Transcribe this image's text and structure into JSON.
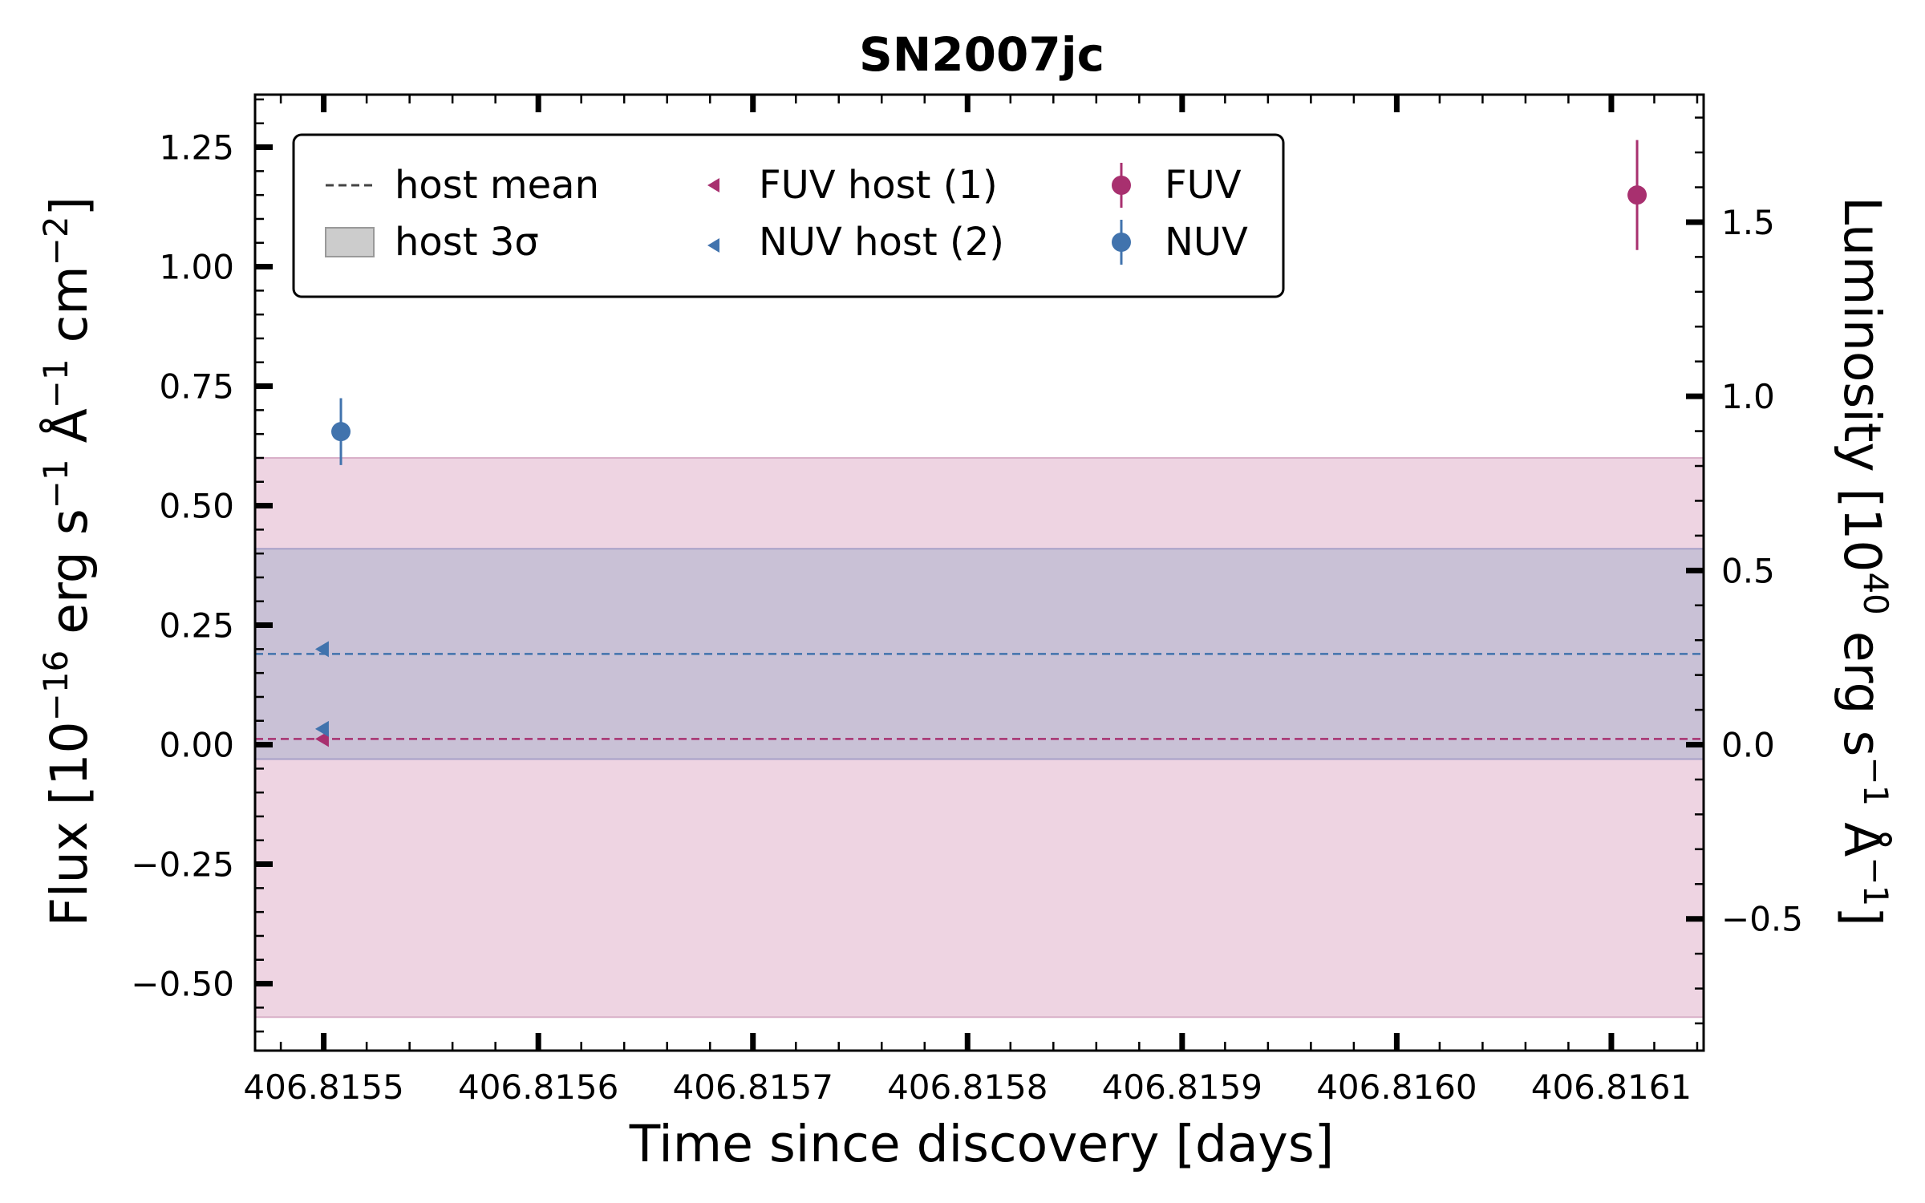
{
  "colors": {
    "fuv": "#a8306f",
    "nuv": "#4173ad",
    "fuv_band": "#eed4e2",
    "nuv_band": "#c9c1d6",
    "band_edge_fuv": "#d9b0c8",
    "band_edge_nuv": "#a7a0c8",
    "host_mean_legend": "#444444",
    "host_band_legend": "#cccccc"
  },
  "chart_data": {
    "type": "scatter",
    "title": "SN2007jc",
    "xlabel": "Time since discovery [days]",
    "ylabel": "Flux [10",
    "ylabel_exp1": "−16",
    "ylabel_mid": " erg s",
    "ylabel_exp2": "−1",
    "ylabel_mid2": " Å",
    "ylabel_exp3": "−1",
    "ylabel_mid3": " cm",
    "ylabel_exp4": "−2",
    "ylabel_end": "]",
    "y2label": "Luminosity [10",
    "y2label_exp1": "40",
    "y2label_mid": " erg s",
    "y2label_exp2": "−1",
    "y2label_mid2": " Å",
    "y2label_exp3": "−1",
    "y2label_end": "]",
    "xlim": [
      406.815468,
      406.816143
    ],
    "ylim": [
      -0.64,
      1.36
    ],
    "y2lim": [
      -0.8782,
      1.8659
    ],
    "xticks": [
      {
        "value": 406.8155,
        "label": "406.8155"
      },
      {
        "value": 406.8156,
        "label": "406.8156"
      },
      {
        "value": 406.8157,
        "label": "406.8157"
      },
      {
        "value": 406.8158,
        "label": "406.8158"
      },
      {
        "value": 406.8159,
        "label": "406.8159"
      },
      {
        "value": 406.816,
        "label": "406.8160"
      },
      {
        "value": 406.8161,
        "label": "406.8161"
      }
    ],
    "yticks": [
      {
        "value": -0.5,
        "label": "−0.50"
      },
      {
        "value": -0.25,
        "label": "−0.25"
      },
      {
        "value": 0.0,
        "label": "0.00"
      },
      {
        "value": 0.25,
        "label": "0.25"
      },
      {
        "value": 0.5,
        "label": "0.50"
      },
      {
        "value": 0.75,
        "label": "0.75"
      },
      {
        "value": 1.0,
        "label": "1.00"
      },
      {
        "value": 1.25,
        "label": "1.25"
      }
    ],
    "y2ticks": [
      {
        "value": -0.5,
        "label": "−0.5"
      },
      {
        "value": 0.0,
        "label": "0.0"
      },
      {
        "value": 0.5,
        "label": "0.5"
      },
      {
        "value": 1.0,
        "label": "1.0"
      },
      {
        "value": 1.5,
        "label": "1.5"
      }
    ],
    "host_bands": [
      {
        "name": "FUV",
        "mean": 0.012,
        "low": -0.57,
        "high": 0.6
      },
      {
        "name": "NUV",
        "mean": 0.19,
        "low": -0.03,
        "high": 0.41
      }
    ],
    "host_points": [
      {
        "series": "FUV host",
        "x": 406.815499,
        "y": 0.012
      },
      {
        "series": "NUV host",
        "x": 406.815499,
        "y": 0.033
      },
      {
        "series": "NUV host",
        "x": 406.815499,
        "y": 0.2
      }
    ],
    "detections": [
      {
        "series": "NUV",
        "x": 406.815508,
        "y": 0.655,
        "yerr": 0.07
      },
      {
        "series": "FUV",
        "x": 406.816112,
        "y": 1.15,
        "yerr": 0.115
      }
    ],
    "legend": {
      "position": "upper-left",
      "entries": [
        {
          "key": "host_mean",
          "label": "host mean"
        },
        {
          "key": "host_band",
          "label": "host 3σ"
        },
        {
          "key": "fuv_host",
          "label": "FUV host (1)"
        },
        {
          "key": "nuv_host",
          "label": "NUV host (2)"
        },
        {
          "key": "fuv",
          "label": "FUV"
        },
        {
          "key": "nuv",
          "label": "NUV"
        }
      ]
    }
  }
}
